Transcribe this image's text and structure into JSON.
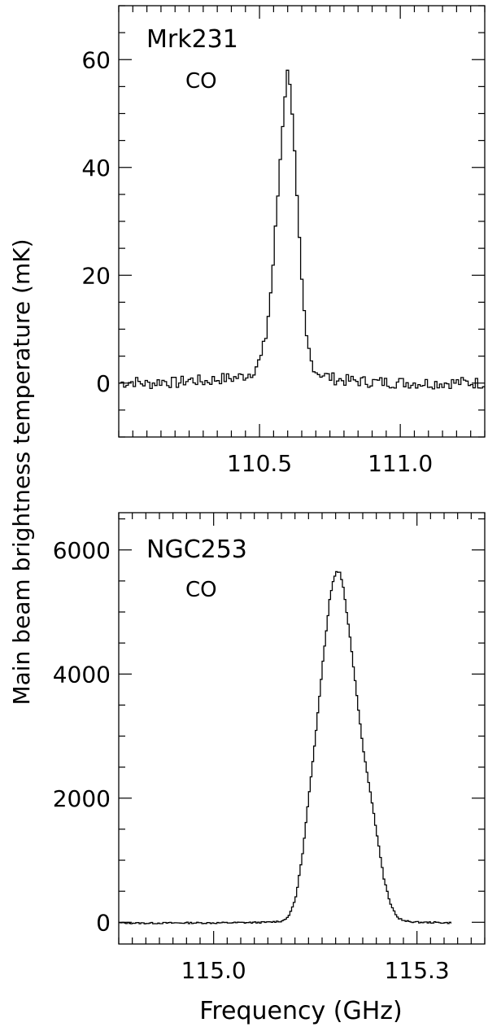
{
  "figure": {
    "ylabel": "Main beam brightness temperature (mK)",
    "xlabel": "Frequency (GHz)"
  },
  "chart_data": [
    {
      "type": "line",
      "title": "Mrk231",
      "subtitle": "CO",
      "xlabel": "Frequency (GHz)",
      "ylabel": "Main beam brightness temperature (mK)",
      "xlim": [
        110.0,
        111.3
      ],
      "ylim": [
        -10,
        70
      ],
      "xticks": [
        110.5,
        111.0
      ],
      "xtick_labels": [
        "110.5",
        "111.0"
      ],
      "yticks": [
        0,
        20,
        40,
        60
      ],
      "ytick_labels": [
        "0",
        "20",
        "40",
        "60"
      ],
      "series": [
        {
          "step": 0.0085,
          "points": [
            [
              110.0,
              0.0
            ],
            [
              110.05,
              0.3
            ],
            [
              110.1,
              -0.2
            ],
            [
              110.15,
              0.4
            ],
            [
              110.2,
              0.0
            ],
            [
              110.25,
              0.6
            ],
            [
              110.3,
              0.3
            ],
            [
              110.35,
              0.8
            ],
            [
              110.4,
              0.9
            ],
            [
              110.44,
              1.3
            ],
            [
              110.47,
              2.0
            ],
            [
              110.5,
              4.5
            ],
            [
              110.52,
              9.0
            ],
            [
              110.54,
              19.0
            ],
            [
              110.56,
              34.0
            ],
            [
              110.575,
              46.0
            ],
            [
              110.585,
              53.0
            ],
            [
              110.595,
              57.5
            ],
            [
              110.605,
              56.0
            ],
            [
              110.615,
              48.0
            ],
            [
              110.63,
              33.0
            ],
            [
              110.645,
              19.0
            ],
            [
              110.66,
              9.0
            ],
            [
              110.68,
              4.0
            ],
            [
              110.7,
              2.0
            ],
            [
              110.73,
              1.4
            ],
            [
              110.76,
              0.8
            ],
            [
              110.8,
              0.5
            ],
            [
              110.9,
              0.2
            ],
            [
              111.0,
              0.1
            ],
            [
              111.1,
              0.0
            ],
            [
              111.2,
              0.1
            ],
            [
              111.3,
              0.0
            ]
          ]
        }
      ],
      "grid": false,
      "legend": "none"
    },
    {
      "type": "line",
      "title": "NGC253",
      "subtitle": "CO",
      "xlabel": "Frequency (GHz)",
      "ylabel": "Main beam brightness temperature (mK)",
      "xlim": [
        114.86,
        115.4
      ],
      "ylim": [
        -350,
        6600
      ],
      "xticks": [
        115.0,
        115.3
      ],
      "xtick_labels": [
        "115.0",
        "115.3"
      ],
      "yticks": [
        0,
        2000,
        4000,
        6000
      ],
      "ytick_labels": [
        "0",
        "2000",
        "4000",
        "6000"
      ],
      "series": [
        {
          "step": 0.0025,
          "points": [
            [
              114.86,
              -10
            ],
            [
              114.9,
              -15
            ],
            [
              114.95,
              -10
            ],
            [
              115.0,
              -10
            ],
            [
              115.05,
              -5
            ],
            [
              115.08,
              0
            ],
            [
              115.1,
              20
            ],
            [
              115.11,
              100
            ],
            [
              115.12,
              400
            ],
            [
              115.13,
              1100
            ],
            [
              115.14,
              2100
            ],
            [
              115.15,
              3100
            ],
            [
              115.16,
              4200
            ],
            [
              115.17,
              5200
            ],
            [
              115.175,
              5500
            ],
            [
              115.18,
              5650
            ],
            [
              115.185,
              5650
            ],
            [
              115.19,
              5400
            ],
            [
              115.2,
              4600
            ],
            [
              115.21,
              3650
            ],
            [
              115.22,
              2750
            ],
            [
              115.23,
              2100
            ],
            [
              115.24,
              1400
            ],
            [
              115.25,
              700
            ],
            [
              115.26,
              280
            ],
            [
              115.27,
              80
            ],
            [
              115.28,
              20
            ],
            [
              115.3,
              0
            ],
            [
              115.33,
              -5
            ],
            [
              115.35,
              -10
            ]
          ]
        }
      ],
      "grid": false,
      "legend": "none"
    }
  ]
}
